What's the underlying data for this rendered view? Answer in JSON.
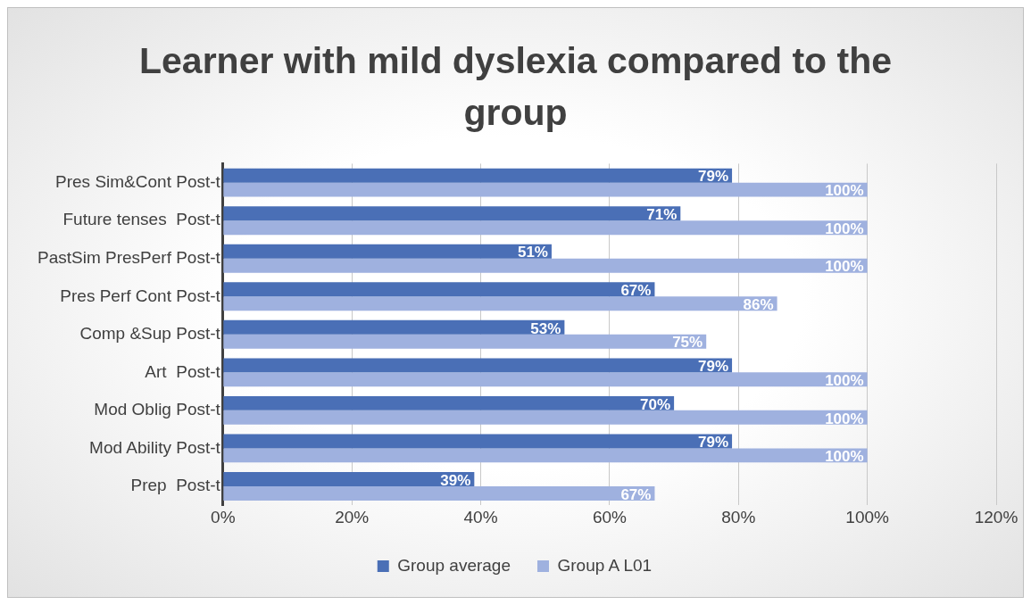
{
  "chart_data": {
    "type": "bar",
    "orientation": "horizontal",
    "title": "Learner with mild dyslexia compared to the group",
    "categories": [
      "Pres Sim&Cont Post-t",
      "Future tenses  Post-t",
      "PastSim PresPerf Post-t",
      "Pres Perf Cont Post-t",
      "Comp &Sup Post-t",
      "Art  Post-t",
      "Mod Oblig Post-t",
      "Mod Ability Post-t",
      "Prep  Post-t"
    ],
    "series": [
      {
        "name": "Group average",
        "color": "#4a6fb6",
        "values": [
          79,
          71,
          51,
          67,
          53,
          79,
          70,
          79,
          39
        ],
        "value_labels": [
          "79%",
          "71%",
          "51%",
          "67%",
          "53%",
          "79%",
          "70%",
          "79%",
          "39%"
        ]
      },
      {
        "name": "Group A L01",
        "color": "#9fb1df",
        "values": [
          100,
          100,
          100,
          86,
          75,
          100,
          100,
          100,
          67
        ],
        "value_labels": [
          "100%",
          "100%",
          "100%",
          "86%",
          "75%",
          "100%",
          "100%",
          "100%",
          "67%"
        ]
      }
    ],
    "xlim": [
      0,
      120
    ],
    "xticks": [
      {
        "value": 0,
        "label": "0%"
      },
      {
        "value": 20,
        "label": "20%"
      },
      {
        "value": 40,
        "label": "40%"
      },
      {
        "value": 60,
        "label": "60%"
      },
      {
        "value": 80,
        "label": "80%"
      },
      {
        "value": 100,
        "label": "100%"
      },
      {
        "value": 120,
        "label": "120%"
      }
    ],
    "grid": "x",
    "legend": "bottom"
  }
}
